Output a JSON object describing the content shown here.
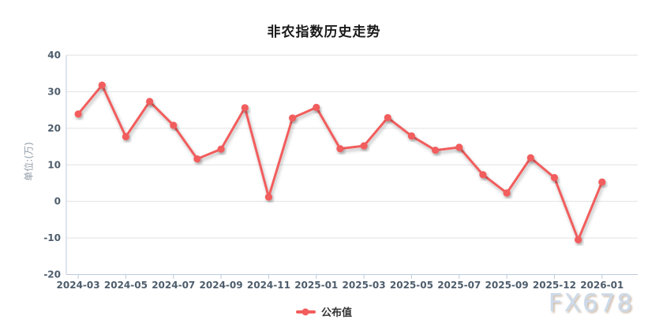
{
  "title": "非农指数历史走势",
  "y_axis_unit": "单位:(万)",
  "legend": {
    "series_label": "公布值"
  },
  "watermark": "FX678",
  "colors": {
    "line": "#f25d5d",
    "grid": "#e2e2e2",
    "axis": "#bccbdb",
    "tick_label": "#4e5d6c",
    "title": "#1a1a1a",
    "unit_label": "#8f9aa5",
    "watermark": "#ccdaea",
    "background": "#ffffff"
  },
  "chart_data": {
    "type": "line",
    "title": "非农指数历史走势",
    "xlabel": "",
    "ylabel": "单位:(万)",
    "ylim": [
      -20,
      40
    ],
    "y_ticks": [
      40,
      30,
      20,
      10,
      0,
      -10,
      -20
    ],
    "grid": true,
    "legend_position": "bottom",
    "categories": [
      "2024-03",
      "",
      "2024-05",
      "",
      "2024-07",
      "",
      "2024-09",
      "",
      "2024-11",
      "",
      "2025-01",
      "",
      "2025-03",
      "",
      "2025-05",
      "",
      "2025-07",
      "",
      "2025-09",
      "",
      "2025-12",
      "",
      "2026-01"
    ],
    "series": [
      {
        "name": "公布值",
        "color": "#f25d5d",
        "values": [
          23.9,
          31.8,
          17.7,
          27.3,
          20.8,
          11.6,
          14.3,
          25.6,
          1.2,
          22.8,
          25.7,
          14.4,
          15.2,
          22.9,
          17.9,
          14.0,
          14.8,
          7.3,
          2.3,
          11.9,
          6.5,
          -10.5,
          5.3
        ]
      }
    ]
  }
}
